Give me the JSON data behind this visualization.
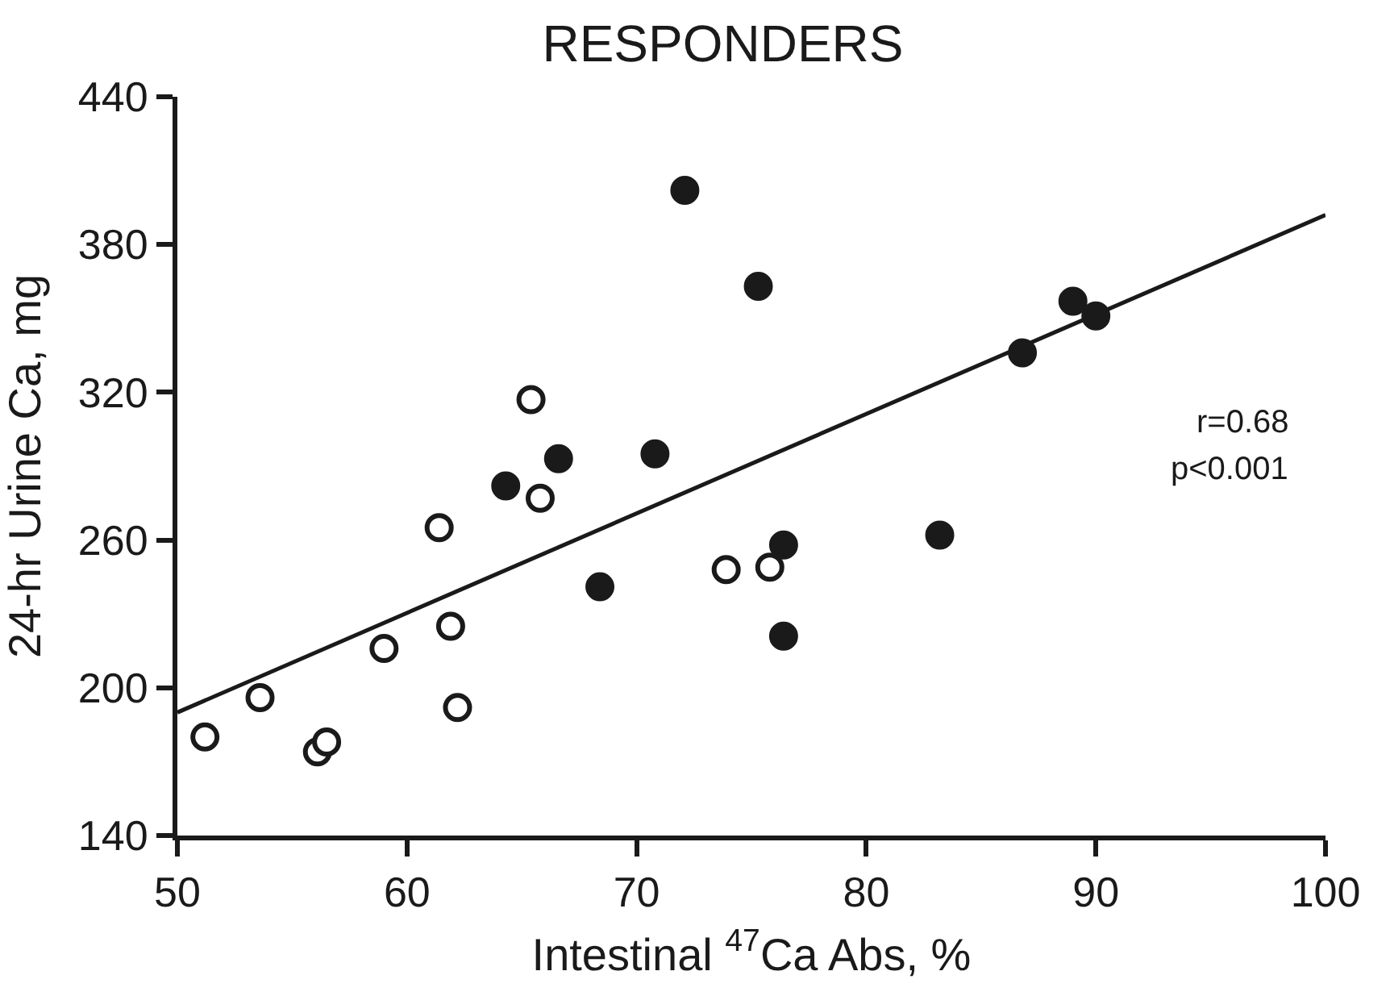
{
  "chart_data": {
    "type": "scatter",
    "title": "RESPONDERS",
    "xlabel": "Intestinal $^{47}$Ca Abs, %",
    "ylabel": "24-hr Urine Ca, mg",
    "xlim": [
      50,
      100
    ],
    "xticks": [
      50,
      60,
      70,
      80,
      90,
      100
    ],
    "ylim": [
      140,
      440
    ],
    "yticks": [
      140,
      200,
      260,
      320,
      380,
      440
    ],
    "annotations": [
      "r=0.68",
      "p<0.001"
    ],
    "series": [
      {
        "color": "#ffffff",
        "marker": "circle",
        "x": [
          51.2,
          53.6,
          56.1,
          56.5,
          59.0,
          61.4,
          61.9,
          62.2,
          65.4,
          65.8,
          73.9,
          75.8
        ],
        "values": [
          180,
          196,
          174,
          178,
          216,
          265,
          225,
          192,
          317,
          277,
          248,
          249
        ]
      },
      {
        "color": "#1a1a1a",
        "marker": "circle",
        "x": [
          64.3,
          66.6,
          68.4,
          70.8,
          72.1,
          75.3,
          76.4,
          76.4,
          83.2,
          86.8,
          89.0,
          90.0
        ],
        "values": [
          282,
          293,
          241,
          295,
          402,
          363,
          258,
          221,
          262,
          336,
          357,
          351
        ]
      },
      {
        "type": "line",
        "marker": "none",
        "color": "#1a1a1a",
        "x": [
          50,
          100
        ],
        "values": [
          190,
          392
        ]
      }
    ]
  }
}
